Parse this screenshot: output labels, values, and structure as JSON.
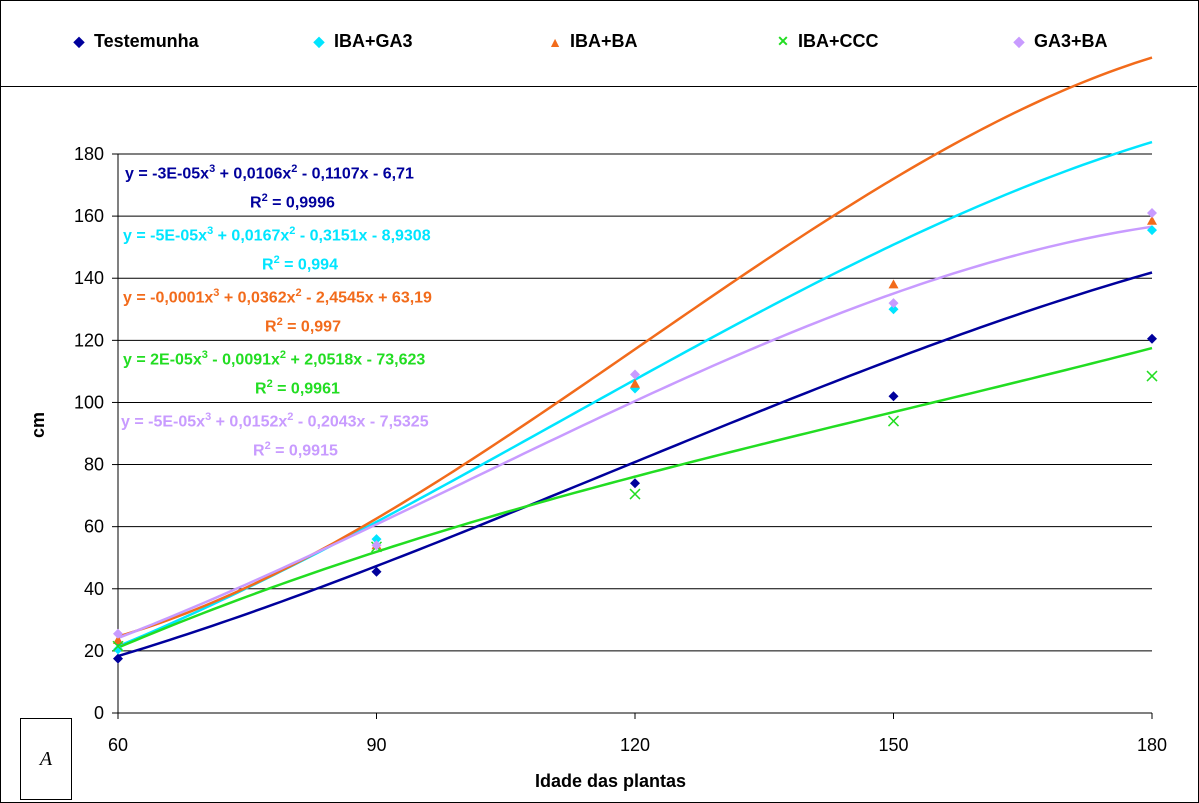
{
  "chart_data": {
    "type": "scatter",
    "xlabel": "Idade das plantas",
    "ylabel": "cm",
    "xlim": [
      60,
      180
    ],
    "ylim": [
      0,
      180
    ],
    "xticks": [
      60,
      90,
      120,
      150,
      180
    ],
    "yticks": [
      0,
      20,
      40,
      60,
      80,
      100,
      120,
      140,
      160,
      180
    ],
    "grid": "horizontal",
    "legend_position": "top",
    "corner_label": "A",
    "x": [
      60,
      90,
      120,
      150,
      180
    ],
    "series": [
      {
        "name": "Testemunha",
        "color": "#00009C",
        "marker": "diamond",
        "values": [
          17.5,
          45.5,
          74,
          102,
          120.5
        ],
        "trend": {
          "type": "poly3",
          "coef": [
            -3e-05,
            0.0106,
            -0.1107,
            -6.71
          ]
        },
        "equation_text": "y = -3E-05x",
        "equation_rest1": " + 0,0106x",
        "equation_rest2": " - 0,1107x - 6,71",
        "r2_text": "R",
        "r2_value": " = 0,9996"
      },
      {
        "name": "IBA+GA3",
        "color": "#00E5FF",
        "marker": "diamond",
        "values": [
          20.5,
          56,
          104.5,
          130,
          155.5
        ],
        "trend": {
          "type": "poly3",
          "coef": [
            -5e-05,
            0.0167,
            -0.3151,
            -8.9308
          ]
        },
        "equation_text": "y = -5E-05x",
        "equation_rest1": " + 0,0167x",
        "equation_rest2": " - 0,3151x - 8,9308",
        "r2_text": "R",
        "r2_value": " = 0,994"
      },
      {
        "name": "IBA+BA",
        "color": "#F26B1B",
        "marker": "triangle",
        "values": [
          23.5,
          54,
          106,
          138,
          158.5
        ],
        "trend": {
          "type": "poly3",
          "coef": [
            -0.0001,
            0.0362,
            -2.4545,
            63.19
          ]
        },
        "equation_text": "y = -0,0001x",
        "equation_rest1": " + 0,0362x",
        "equation_rest2": " - 2,4545x + 63,19",
        "r2_text": "R",
        "r2_value": " = 0,997"
      },
      {
        "name": "IBA+CCC",
        "color": "#22DD22",
        "marker": "x",
        "values": [
          21.5,
          53.5,
          70.5,
          94,
          108.5
        ],
        "trend": {
          "type": "poly3",
          "coef": [
            2e-05,
            -0.0091,
            2.0518,
            -73.623
          ]
        },
        "equation_text": "y = 2E-05x",
        "equation_rest1": " - 0,0091x",
        "equation_rest2": " + 2,0518x - 73,623",
        "r2_text": "R",
        "r2_value": " = 0,9961"
      },
      {
        "name": "GA3+BA",
        "color": "#C89BFF",
        "marker": "diamond",
        "values": [
          25.5,
          54,
          109,
          132,
          161
        ],
        "trend": {
          "type": "poly3",
          "coef": [
            -5e-05,
            0.0152,
            -0.2043,
            -7.5325
          ]
        },
        "equation_text": "y = -5E-05x",
        "equation_rest1": " + 0,0152x",
        "equation_rest2": " - 0,2043x - 7,5325",
        "r2_text": "R",
        "r2_value": " = 0,9915"
      }
    ]
  }
}
